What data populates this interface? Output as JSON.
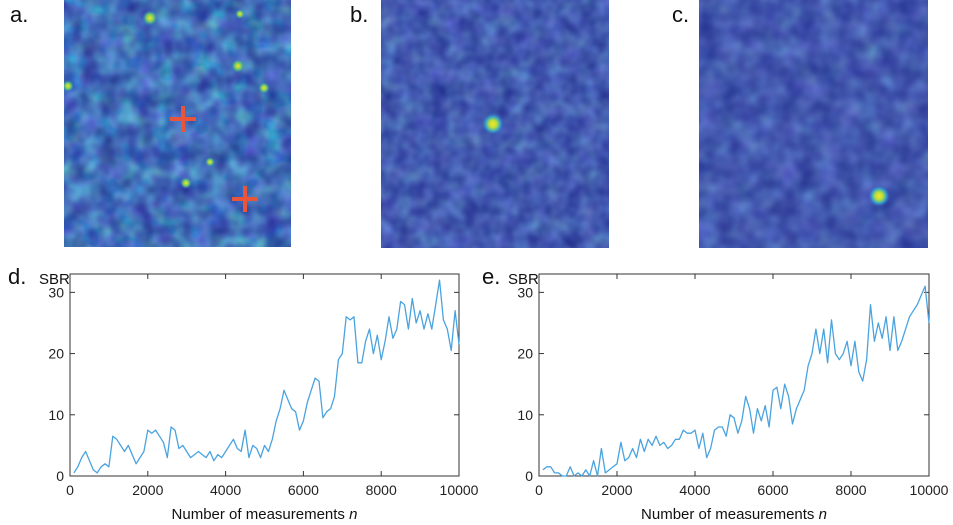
{
  "panels": {
    "a": "a.",
    "b": "b.",
    "c": "c.",
    "d": "d.",
    "e": "e."
  },
  "colors": {
    "image_background": "#1f2b8c",
    "image_mid": "#2a7fd0",
    "image_hot": "#f7e62a",
    "marker": "#e8553a",
    "line": "#4aa3df"
  },
  "chart_data": [
    {
      "type": "line",
      "panel": "d.",
      "ylabel": "SBR",
      "xlabel": "Number of measurements",
      "xlabel_var": "n",
      "xlim": [
        0,
        10000
      ],
      "ylim": [
        0,
        33
      ],
      "xticks": [
        0,
        2000,
        4000,
        6000,
        8000,
        10000
      ],
      "yticks": [
        0,
        10,
        20,
        30
      ],
      "grid": false,
      "x": [
        100,
        200,
        300,
        400,
        500,
        600,
        700,
        800,
        900,
        1000,
        1100,
        1200,
        1300,
        1400,
        1500,
        1600,
        1700,
        1800,
        1900,
        2000,
        2100,
        2200,
        2300,
        2400,
        2500,
        2600,
        2700,
        2800,
        2900,
        3000,
        3100,
        3200,
        3300,
        3400,
        3500,
        3600,
        3700,
        3800,
        3900,
        4000,
        4100,
        4200,
        4300,
        4400,
        4500,
        4600,
        4700,
        4800,
        4900,
        5000,
        5100,
        5200,
        5300,
        5400,
        5500,
        5600,
        5700,
        5800,
        5900,
        6000,
        6100,
        6200,
        6300,
        6400,
        6500,
        6600,
        6700,
        6800,
        6900,
        7000,
        7100,
        7200,
        7300,
        7400,
        7500,
        7600,
        7700,
        7800,
        7900,
        8000,
        8100,
        8200,
        8300,
        8400,
        8500,
        8600,
        8700,
        8800,
        8900,
        9000,
        9100,
        9200,
        9300,
        9400,
        9500,
        9600,
        9700,
        9800,
        9900,
        10000
      ],
      "y": [
        0.5,
        1.5,
        3,
        4,
        2.5,
        1,
        0.5,
        1.5,
        2,
        1.5,
        6.5,
        6,
        5,
        4,
        5,
        3.5,
        2,
        3,
        4,
        7.5,
        7,
        7.5,
        6.5,
        5.5,
        3,
        8,
        7.5,
        4.5,
        5,
        4,
        3,
        3.5,
        4,
        3.5,
        3,
        4,
        2.5,
        3.5,
        3,
        4,
        5,
        6,
        4.5,
        4,
        7.5,
        3,
        5,
        4.5,
        3,
        5,
        4,
        6,
        9,
        11,
        14,
        12.5,
        11,
        10.5,
        7.5,
        9,
        12,
        14,
        16,
        15.5,
        9.5,
        10.5,
        11,
        13,
        19,
        20,
        26,
        25.5,
        26,
        18.5,
        18.5,
        22,
        24,
        20,
        23,
        19,
        22,
        26,
        22.5,
        24,
        28.5,
        28,
        24,
        29,
        25,
        27,
        24,
        26.5,
        24,
        28,
        32,
        25.5,
        24,
        20.5,
        27,
        21.5
      ]
    },
    {
      "type": "line",
      "panel": "e.",
      "ylabel": "SBR",
      "xlabel": "Number of measurements",
      "xlabel_var": "n",
      "xlim": [
        0,
        10000
      ],
      "ylim": [
        0,
        33
      ],
      "xticks": [
        0,
        2000,
        4000,
        6000,
        8000,
        10000
      ],
      "yticks": [
        0,
        10,
        20,
        30
      ],
      "grid": false,
      "x": [
        100,
        200,
        300,
        400,
        500,
        600,
        700,
        800,
        900,
        1000,
        1100,
        1200,
        1300,
        1400,
        1500,
        1600,
        1700,
        1800,
        1900,
        2000,
        2100,
        2200,
        2300,
        2400,
        2500,
        2600,
        2700,
        2800,
        2900,
        3000,
        3100,
        3200,
        3300,
        3400,
        3500,
        3600,
        3700,
        3800,
        3900,
        4000,
        4100,
        4200,
        4300,
        4400,
        4500,
        4600,
        4700,
        4800,
        4900,
        5000,
        5100,
        5200,
        5300,
        5400,
        5500,
        5600,
        5700,
        5800,
        5900,
        6000,
        6100,
        6200,
        6300,
        6400,
        6500,
        6600,
        6700,
        6800,
        6900,
        7000,
        7100,
        7200,
        7300,
        7400,
        7500,
        7600,
        7700,
        7800,
        7900,
        8000,
        8100,
        8200,
        8300,
        8400,
        8500,
        8600,
        8700,
        8800,
        8900,
        9000,
        9100,
        9200,
        9300,
        9400,
        9500,
        9600,
        9700,
        9800,
        9900,
        10000
      ],
      "y": [
        1,
        1.5,
        1.5,
        0.5,
        0.5,
        0,
        0,
        1.5,
        0,
        0.5,
        0,
        1,
        0,
        2.5,
        0,
        4.5,
        0.5,
        1,
        1.5,
        2,
        5.5,
        2.5,
        3,
        4.5,
        3,
        6,
        4,
        6,
        5,
        6.5,
        5,
        5.5,
        4.5,
        5,
        6,
        6,
        7.5,
        7,
        7,
        7.5,
        4.5,
        7,
        3,
        4.5,
        7.5,
        8,
        8,
        6.5,
        10,
        9.5,
        7,
        9,
        13,
        11,
        7,
        11,
        9,
        11.5,
        8,
        14,
        14.5,
        11,
        15,
        13,
        8.5,
        11,
        12.5,
        14,
        18,
        20,
        24,
        20,
        24,
        18.5,
        25.5,
        20,
        19,
        20,
        22,
        18,
        22,
        17,
        15.5,
        19,
        28,
        22,
        25,
        22.5,
        26,
        20.5,
        26,
        20.5,
        22,
        24,
        26,
        27,
        28,
        29.5,
        31,
        25
      ]
    }
  ]
}
